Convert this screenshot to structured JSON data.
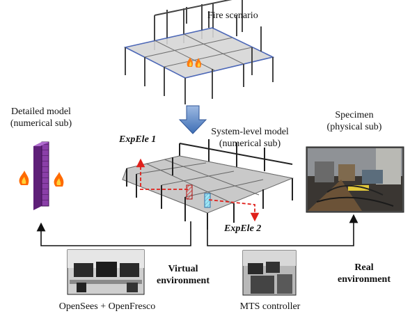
{
  "labels": {
    "fire_scenario": "Fire scenario",
    "detailed_model_line1": "Detailed model",
    "detailed_model_line2": "(numerical sub)",
    "system_model_line1": "System-level model",
    "system_model_line2": "(numerical sub)",
    "specimen_line1": "Specimen",
    "specimen_line2": "(physical sub)",
    "exp_ele_1": "ExpEle 1",
    "exp_ele_2": "ExpEle 2",
    "virtual_line1": "Virtual",
    "virtual_line2": "environment",
    "real_line1": "Real",
    "real_line2": "environment",
    "opensees": "OpenSees + OpenFresco",
    "mts": "MTS controller"
  },
  "colors": {
    "accent_red": "#e0201b",
    "arrow_blue": "#4f81bd",
    "slab_gray": "#c8c8c8",
    "column_purple": "#8a3fa8",
    "element_cyan": "#9fe6f5"
  },
  "icons": {
    "fire": "flame-icon",
    "photo_specimen": "lab-specimen-photo",
    "photo_virtual": "workstation-photo",
    "photo_real": "controller-photo"
  }
}
